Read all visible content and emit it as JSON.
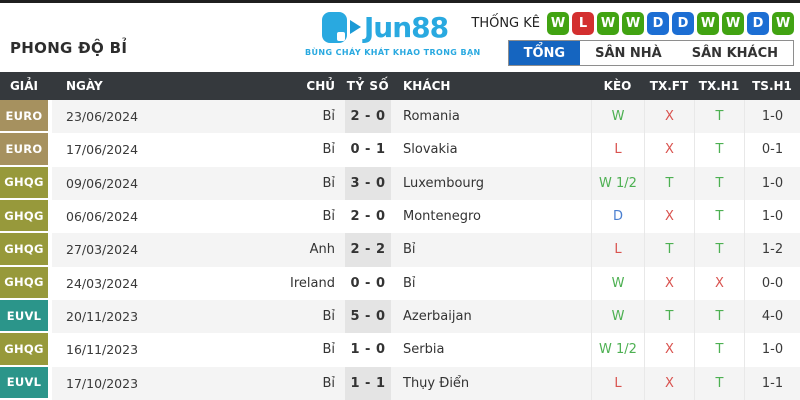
{
  "page": {
    "title": "PHONG ĐỘ BỈ"
  },
  "brand": {
    "logo_text": "Jun88",
    "tagline": "BÙNG CHÁY KHÁT KHAO TRONG BẠN"
  },
  "stats": {
    "label": "THỐNG KÊ",
    "results": [
      "W",
      "L",
      "W",
      "W",
      "D",
      "D",
      "W",
      "W",
      "D",
      "W"
    ]
  },
  "tabs": [
    {
      "label": "TỔNG",
      "active": true
    },
    {
      "label": "SÂN NHÀ",
      "active": false
    },
    {
      "label": "SÂN KHÁCH",
      "active": false
    }
  ],
  "colors": {
    "accent_blue": "#29a9e0",
    "tab_active_blue": "#1565c0",
    "win_green": "#41a312",
    "loss_red": "#d32f2f",
    "draw_blue": "#1c6ed3",
    "euro_badge": "#a6915f",
    "ghqg_badge": "#97993b",
    "euvl_badge": "#2b958a",
    "text_green": "#4db052",
    "text_red": "#d9534f",
    "text_blue": "#4a7fd0",
    "header_dark": "#35393d"
  },
  "table": {
    "headers": [
      "GIẢI",
      "NGÀY",
      "CHỦ",
      "TỶ SỐ",
      "KHÁCH",
      "KÈO",
      "TX.FT",
      "TX.H1",
      "TS.H1"
    ],
    "rows": [
      {
        "league": "EURO",
        "date": "23/06/2024",
        "home": "Bỉ",
        "score": "2 - 0",
        "away": "Romania",
        "keo": {
          "text": "W",
          "tone": "g"
        },
        "txft": {
          "text": "X",
          "tone": "r"
        },
        "txh1": {
          "text": "T",
          "tone": "g"
        },
        "tsh1": "1-0"
      },
      {
        "league": "EURO",
        "date": "17/06/2024",
        "home": "Bỉ",
        "score": "0 - 1",
        "away": "Slovakia",
        "keo": {
          "text": "L",
          "tone": "r"
        },
        "txft": {
          "text": "X",
          "tone": "r"
        },
        "txh1": {
          "text": "T",
          "tone": "g"
        },
        "tsh1": "0-1"
      },
      {
        "league": "GHQG",
        "date": "09/06/2024",
        "home": "Bỉ",
        "score": "3 - 0",
        "away": "Luxembourg",
        "keo": {
          "text": "W 1/2",
          "tone": "g"
        },
        "txft": {
          "text": "T",
          "tone": "g"
        },
        "txh1": {
          "text": "T",
          "tone": "g"
        },
        "tsh1": "1-0"
      },
      {
        "league": "GHQG",
        "date": "06/06/2024",
        "home": "Bỉ",
        "score": "2 - 0",
        "away": "Montenegro",
        "keo": {
          "text": "D",
          "tone": "b"
        },
        "txft": {
          "text": "X",
          "tone": "r"
        },
        "txh1": {
          "text": "T",
          "tone": "g"
        },
        "tsh1": "1-0"
      },
      {
        "league": "GHQG",
        "date": "27/03/2024",
        "home": "Anh",
        "score": "2 - 2",
        "away": "Bỉ",
        "keo": {
          "text": "L",
          "tone": "r"
        },
        "txft": {
          "text": "T",
          "tone": "g"
        },
        "txh1": {
          "text": "T",
          "tone": "g"
        },
        "tsh1": "1-2"
      },
      {
        "league": "GHQG",
        "date": "24/03/2024",
        "home": "Ireland",
        "score": "0 - 0",
        "away": "Bỉ",
        "keo": {
          "text": "W",
          "tone": "g"
        },
        "txft": {
          "text": "X",
          "tone": "r"
        },
        "txh1": {
          "text": "X",
          "tone": "r"
        },
        "tsh1": "0-0"
      },
      {
        "league": "EUVL",
        "date": "20/11/2023",
        "home": "Bỉ",
        "score": "5 - 0",
        "away": "Azerbaijan",
        "keo": {
          "text": "W",
          "tone": "g"
        },
        "txft": {
          "text": "T",
          "tone": "g"
        },
        "txh1": {
          "text": "T",
          "tone": "g"
        },
        "tsh1": "4-0"
      },
      {
        "league": "GHQG",
        "date": "16/11/2023",
        "home": "Bỉ",
        "score": "1 - 0",
        "away": "Serbia",
        "keo": {
          "text": "W 1/2",
          "tone": "g"
        },
        "txft": {
          "text": "X",
          "tone": "r"
        },
        "txh1": {
          "text": "T",
          "tone": "g"
        },
        "tsh1": "1-0"
      },
      {
        "league": "EUVL",
        "date": "17/10/2023",
        "home": "Bỉ",
        "score": "1 - 1",
        "away": "Thụy Điển",
        "keo": {
          "text": "L",
          "tone": "r"
        },
        "txft": {
          "text": "X",
          "tone": "r"
        },
        "txh1": {
          "text": "T",
          "tone": "g"
        },
        "tsh1": "1-1"
      }
    ]
  }
}
